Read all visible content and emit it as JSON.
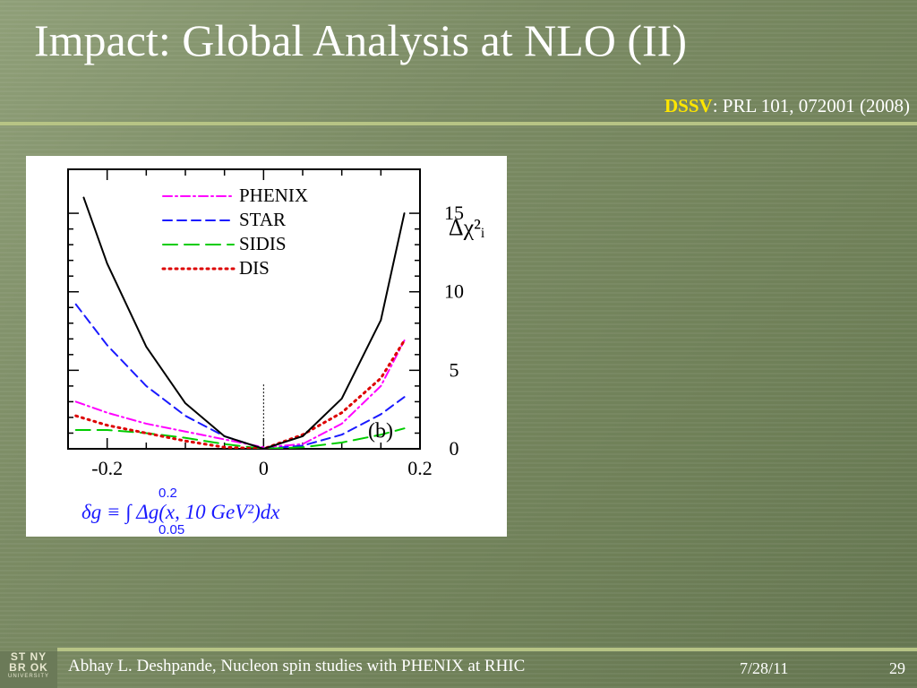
{
  "slide": {
    "title": "Impact: Global Analysis at NLO (II)",
    "citation_highlight": "DSSV",
    "citation_rest": ": PRL 101, 072001 (2008)",
    "footer_author": "Abhay L. Deshpande, Nucleon spin studies with PHENIX at RHIC",
    "footer_date": "7/28/11",
    "footer_page": "29",
    "logo": {
      "line1": "ST NY",
      "line2": "BR OK",
      "line3": "UNIVERSITY"
    },
    "colors": {
      "accent_rule": "#b7c485",
      "highlight": "#ffe600",
      "text": "#ffffff"
    }
  },
  "chart_data": {
    "type": "line",
    "panel_label": "(b)",
    "ylabel": "Δχ²ᵢ",
    "xlabel_formula": "δg ≡ ∫ Δg(x, 10 GeV²)dx",
    "xlabel_lower": "0.05",
    "xlabel_upper": "0.2",
    "xlim": [
      -0.25,
      0.2
    ],
    "ylim": [
      0,
      15
    ],
    "xticks": [
      "-0.2",
      "0",
      "0.2"
    ],
    "yticks": [
      "0",
      "5",
      "10",
      "15"
    ],
    "legend": [
      "PHENIX",
      "STAR",
      "SIDIS",
      "DIS"
    ],
    "series": [
      {
        "name": "PHENIX",
        "color": "#ff00ff",
        "dash": "dashdot",
        "x": [
          -0.24,
          -0.2,
          -0.15,
          -0.1,
          -0.05,
          0.0,
          0.05,
          0.1,
          0.15,
          0.18
        ],
        "y": [
          3.0,
          2.3,
          1.6,
          1.1,
          0.6,
          0.1,
          0.3,
          1.6,
          4.0,
          6.9
        ]
      },
      {
        "name": "STAR",
        "color": "#1a1aff",
        "dash": "dashed",
        "x": [
          -0.24,
          -0.2,
          -0.15,
          -0.1,
          -0.05,
          0.0,
          0.05,
          0.1,
          0.15,
          0.18
        ],
        "y": [
          9.2,
          6.6,
          4.0,
          2.1,
          0.8,
          0.0,
          0.2,
          0.9,
          2.2,
          3.3
        ]
      },
      {
        "name": "SIDIS",
        "color": "#00cc00",
        "dash": "longdash",
        "x": [
          -0.24,
          -0.2,
          -0.15,
          -0.1,
          -0.05,
          0.0,
          0.05,
          0.1,
          0.15,
          0.18
        ],
        "y": [
          1.2,
          1.2,
          1.0,
          0.7,
          0.3,
          0.0,
          0.1,
          0.4,
          0.9,
          1.3
        ]
      },
      {
        "name": "DIS",
        "color": "#dd0000",
        "dash": "dotted",
        "x": [
          -0.24,
          -0.2,
          -0.15,
          -0.1,
          -0.05,
          0.0,
          0.05,
          0.1,
          0.15,
          0.18
        ],
        "y": [
          2.1,
          1.5,
          1.0,
          0.5,
          0.1,
          0.0,
          0.9,
          2.3,
          4.5,
          6.9
        ]
      },
      {
        "name": "",
        "color": "#000000",
        "dash": "solid",
        "x": [
          -0.23,
          -0.2,
          -0.15,
          -0.1,
          -0.05,
          0.0,
          0.05,
          0.1,
          0.15,
          0.18
        ],
        "y": [
          16.0,
          11.8,
          6.5,
          2.9,
          0.8,
          0.0,
          0.8,
          3.2,
          8.2,
          15.0
        ]
      }
    ]
  }
}
